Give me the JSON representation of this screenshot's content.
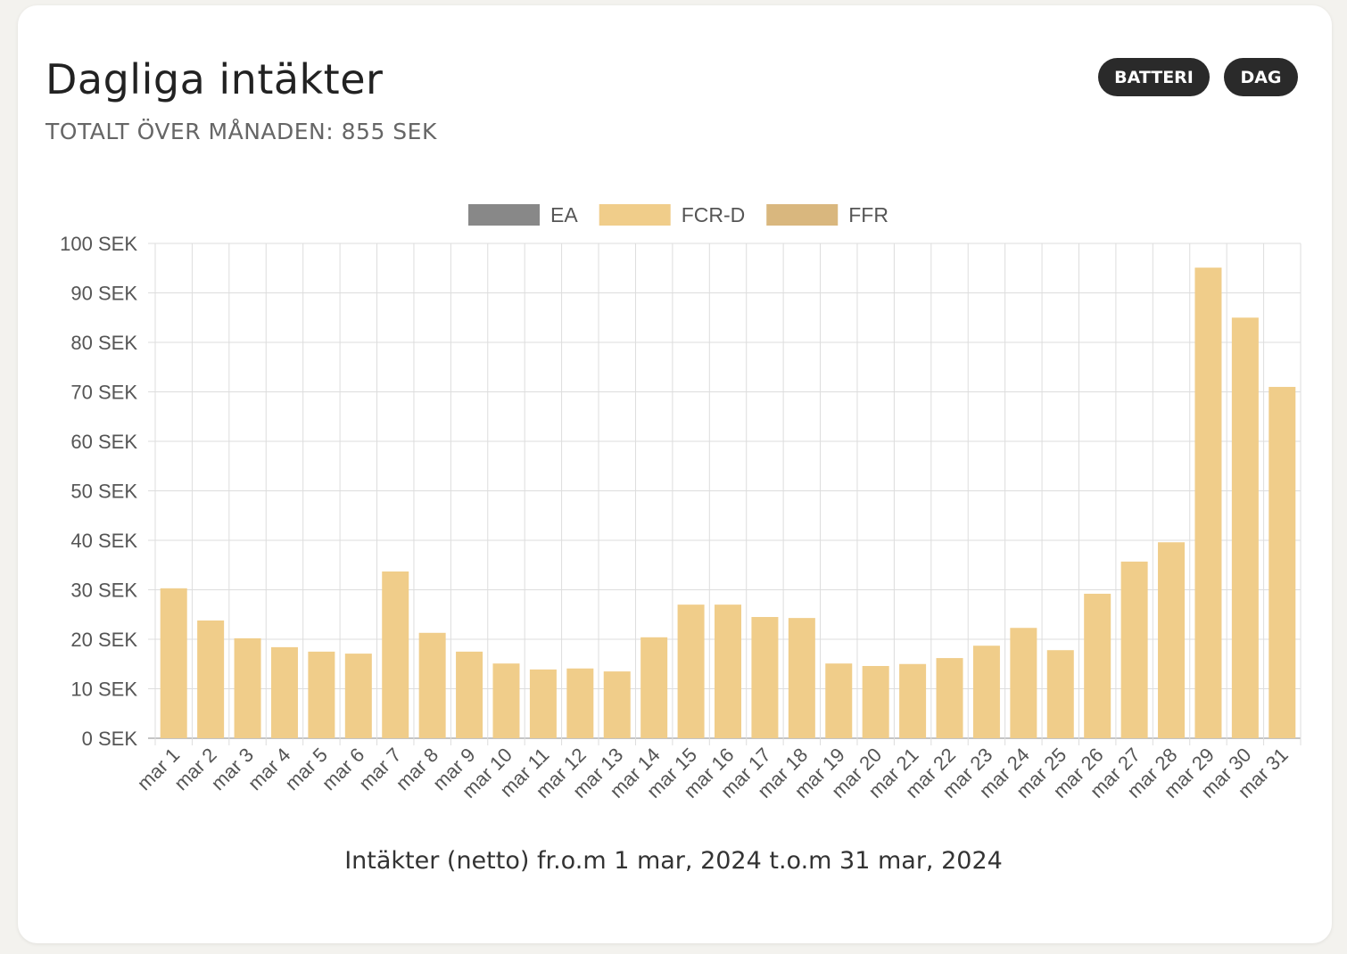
{
  "header": {
    "title": "Dagliga intäkter",
    "subtitle": "TOTALT ÖVER MÅNADEN: 855 SEK"
  },
  "buttons": {
    "battery": "BATTERI",
    "day": "DAG"
  },
  "caption": "Intäkter (netto) fr.o.m 1 mar, 2024 t.o.m 31 mar, 2024",
  "chart_data": {
    "type": "bar",
    "stacked": true,
    "legend_position": "top",
    "grid": true,
    "ylim": [
      0,
      100
    ],
    "y_ticks": [
      "0 SEK",
      "10 SEK",
      "20 SEK",
      "30 SEK",
      "40 SEK",
      "50 SEK",
      "60 SEK",
      "70 SEK",
      "80 SEK",
      "90 SEK",
      "100 SEK"
    ],
    "categories": [
      "mar 1",
      "mar 2",
      "mar 3",
      "mar 4",
      "mar 5",
      "mar 6",
      "mar 7",
      "mar 8",
      "mar 9",
      "mar 10",
      "mar 11",
      "mar 12",
      "mar 13",
      "mar 14",
      "mar 15",
      "mar 16",
      "mar 17",
      "mar 18",
      "mar 19",
      "mar 20",
      "mar 21",
      "mar 22",
      "mar 23",
      "mar 24",
      "mar 25",
      "mar 26",
      "mar 27",
      "mar 28",
      "mar 29",
      "mar 30",
      "mar 31"
    ],
    "series": [
      {
        "name": "EA",
        "color": "#888888",
        "values": [
          0,
          0,
          0,
          0,
          0,
          0,
          0,
          0,
          0,
          0,
          0,
          0,
          0,
          0,
          0,
          0,
          0,
          0,
          0,
          0,
          0,
          0,
          0,
          0,
          0,
          0,
          0,
          0,
          0,
          0,
          0
        ]
      },
      {
        "name": "FCR-D",
        "color": "#f0cd8a",
        "values": [
          30.3,
          23.8,
          20.2,
          18.4,
          17.5,
          17.1,
          33.7,
          21.3,
          17.5,
          15.1,
          13.9,
          14.1,
          13.5,
          20.4,
          27.0,
          27.0,
          24.5,
          24.3,
          15.1,
          14.6,
          15.0,
          16.2,
          18.7,
          22.3,
          17.8,
          29.2,
          35.7,
          39.6,
          95.1,
          85.0,
          71.0
        ]
      },
      {
        "name": "FFR",
        "color": "#d9b77e",
        "values": [
          0,
          0,
          0,
          0,
          0,
          0,
          0,
          0,
          0,
          0,
          0,
          0,
          0,
          0,
          0,
          0,
          0,
          0,
          0,
          0,
          0,
          0,
          0,
          0,
          0,
          0,
          0,
          0,
          0,
          0,
          0
        ]
      }
    ]
  }
}
